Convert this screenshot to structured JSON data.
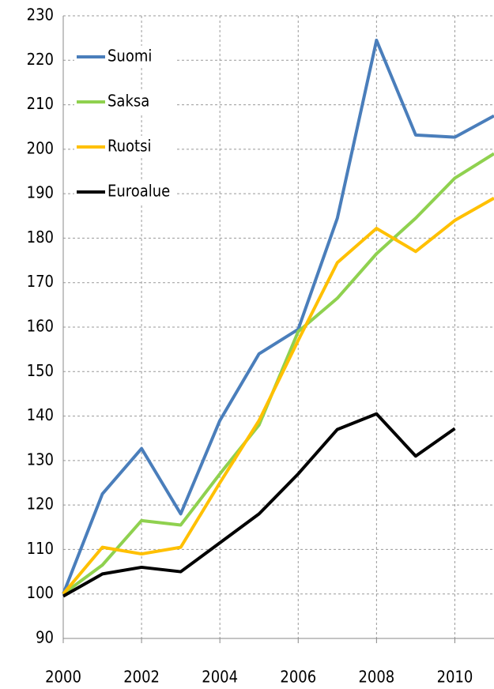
{
  "chart_data": {
    "type": "line",
    "x": [
      2000,
      2001,
      2002,
      2003,
      2004,
      2005,
      2006,
      2007,
      2008,
      2009,
      2010,
      2011
    ],
    "series": [
      {
        "name": "Suomi",
        "color": "#4a7ebb",
        "values": [
          100,
          122.5,
          132.7,
          118,
          139,
          154,
          159.5,
          184.5,
          224.5,
          203.2,
          202.7,
          207.5
        ]
      },
      {
        "name": "Saksa",
        "color": "#8fd14f",
        "values": [
          100,
          106.5,
          116.5,
          115.5,
          127,
          138,
          159,
          166.5,
          176.5,
          184.5,
          193.5,
          199
        ]
      },
      {
        "name": "Ruotsi",
        "color": "#ffc000",
        "values": [
          100,
          110.5,
          109,
          110.5,
          125,
          139,
          157,
          174.5,
          182.2,
          177,
          184,
          189
        ]
      },
      {
        "name": "Euroalue",
        "color": "#000000",
        "values": [
          99.5,
          104.5,
          106,
          105,
          111.5,
          118,
          127,
          137,
          140.5,
          131,
          137.2,
          null
        ]
      }
    ],
    "xlim": [
      2000,
      2011
    ],
    "xticks": [
      2000,
      2002,
      2004,
      2006,
      2008,
      2010
    ],
    "ylim": [
      90,
      230
    ],
    "yticks": [
      90,
      100,
      110,
      120,
      130,
      140,
      150,
      160,
      170,
      180,
      190,
      200,
      210,
      220,
      230
    ],
    "grid": true,
    "legend": "upper left"
  }
}
